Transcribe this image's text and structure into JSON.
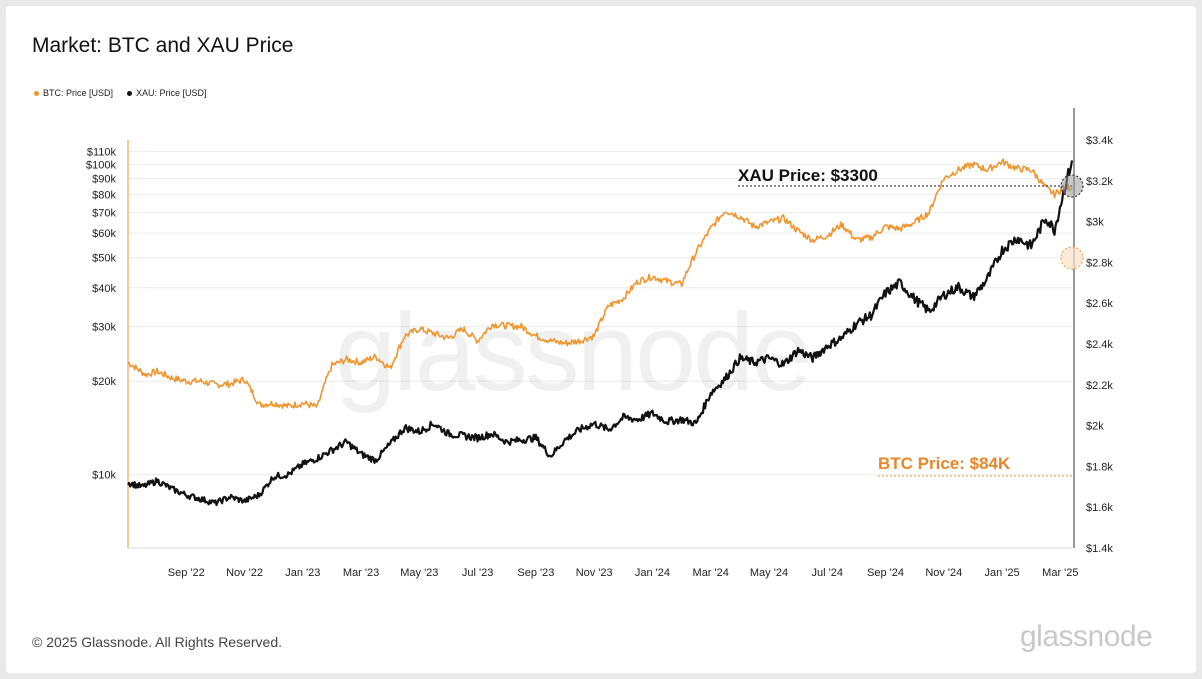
{
  "title": "Market: BTC and XAU Price",
  "footer": "© 2025 Glassnode. All Rights Reserved.",
  "brand": "glassnode",
  "watermark": "glassnode",
  "colors": {
    "btc": "#f0952e",
    "xau": "#111111",
    "grid": "#ececec",
    "btc_label": "#e8862a"
  },
  "legend": [
    {
      "label": "BTC: Price [USD]",
      "color": "#f0952e"
    },
    {
      "label": "XAU: Price [USD]",
      "color": "#111111"
    }
  ],
  "annotations": {
    "xau": "XAU Price: $3300",
    "btc": "BTC Price: $84K"
  },
  "chart_data": {
    "type": "line",
    "title": "Market: BTC and XAU Price",
    "x_ticks": [
      "Sep '22",
      "Nov '22",
      "Jan '23",
      "Mar '23",
      "May '23",
      "Jul '23",
      "Sep '23",
      "Nov '23",
      "Jan '24",
      "Mar '24",
      "May '24",
      "Jul '24",
      "Sep '24",
      "Nov '24",
      "Jan '25",
      "Mar '25"
    ],
    "x_range": [
      0,
      32.4
    ],
    "y_left": {
      "label": "BTC: Price [USD]",
      "ticks": [
        "$10k",
        "$20k",
        "$30k",
        "$40k",
        "$50k",
        "$60k",
        "$70k",
        "$80k",
        "$90k",
        "$100k",
        "$110k"
      ],
      "tick_values": [
        10000,
        20000,
        30000,
        40000,
        50000,
        60000,
        70000,
        80000,
        90000,
        100000,
        110000
      ],
      "range": [
        5800,
        119800
      ],
      "scale": "log"
    },
    "y_right": {
      "label": "XAU: Price [USD]",
      "ticks": [
        "$1.4k",
        "$1.6k",
        "$1.8k",
        "$2k",
        "$2.2k",
        "$2.4k",
        "$2.6k",
        "$2.8k",
        "$3k",
        "$3.2k",
        "$3.4k"
      ],
      "tick_values": [
        1400,
        1600,
        1800,
        2000,
        2200,
        2400,
        2600,
        2800,
        3000,
        3200,
        3400
      ],
      "range": [
        1400,
        3400
      ],
      "scale": "linear"
    },
    "series": [
      {
        "name": "BTC: Price [USD]",
        "axis": "left",
        "x": [
          0,
          0.3,
          0.6,
          1.0,
          1.5,
          2.0,
          2.5,
          3.0,
          3.5,
          4.0,
          4.5,
          5.0,
          5.5,
          6.0,
          6.5,
          7.0,
          7.5,
          8.0,
          8.5,
          9.0,
          9.5,
          10.0,
          10.5,
          11.0,
          11.5,
          12.0,
          12.5,
          13.0,
          13.5,
          14.0,
          14.5,
          15.0,
          15.5,
          16.0,
          16.5,
          17.0,
          17.5,
          18.0,
          18.5,
          19.0,
          19.5,
          20.0,
          20.5,
          21.0,
          21.5,
          22.0,
          22.5,
          23.0,
          23.5,
          24.0,
          24.5,
          25.0,
          25.5,
          26.0,
          26.5,
          27.0,
          27.5,
          28.0,
          28.5,
          29.0,
          29.5,
          30.0,
          30.5,
          31.0,
          31.5,
          31.8,
          32.1,
          32.4
        ],
        "values": [
          23000,
          22000,
          21000,
          21500,
          20500,
          20000,
          20000,
          19500,
          19600,
          20300,
          16800,
          17000,
          16600,
          17000,
          16500,
          22500,
          23500,
          23000,
          24000,
          22000,
          28000,
          29500,
          28500,
          27500,
          29500,
          27000,
          30500,
          30200,
          30000,
          28000,
          27000,
          26500,
          27000,
          28000,
          35000,
          37000,
          42000,
          43500,
          42000,
          41000,
          52000,
          62000,
          71000,
          68000,
          63000,
          65000,
          67000,
          61000,
          57000,
          59000,
          64000,
          57000,
          58000,
          63000,
          62000,
          65000,
          70000,
          90000,
          96000,
          100000,
          96000,
          102000,
          97000,
          96000,
          84000,
          80000,
          84000,
          84000
        ]
      },
      {
        "name": "XAU: Price [USD]",
        "axis": "right",
        "x": [
          0,
          0.5,
          1.0,
          1.5,
          2.0,
          2.5,
          3.0,
          3.5,
          4.0,
          4.5,
          5.0,
          5.5,
          6.0,
          6.5,
          7.0,
          7.5,
          8.0,
          8.5,
          9.0,
          9.5,
          10.0,
          10.5,
          11.0,
          11.5,
          12.0,
          12.5,
          13.0,
          13.5,
          14.0,
          14.5,
          15.0,
          15.5,
          16.0,
          16.5,
          17.0,
          17.5,
          18.0,
          18.5,
          19.0,
          19.5,
          20.0,
          20.5,
          21.0,
          21.5,
          22.0,
          22.5,
          23.0,
          23.5,
          24.0,
          24.5,
          25.0,
          25.5,
          26.0,
          26.5,
          27.0,
          27.5,
          28.0,
          28.5,
          29.0,
          29.5,
          30.0,
          30.5,
          31.0,
          31.5,
          31.8,
          32.1,
          32.4
        ],
        "values": [
          1720,
          1700,
          1730,
          1690,
          1660,
          1640,
          1620,
          1650,
          1630,
          1660,
          1750,
          1760,
          1810,
          1840,
          1880,
          1920,
          1860,
          1830,
          1910,
          1990,
          1970,
          2010,
          1960,
          1950,
          1940,
          1960,
          1920,
          1930,
          1940,
          1850,
          1930,
          1980,
          2010,
          1980,
          2040,
          2030,
          2060,
          2020,
          2030,
          2010,
          2160,
          2230,
          2330,
          2310,
          2330,
          2300,
          2370,
          2330,
          2390,
          2430,
          2500,
          2540,
          2650,
          2700,
          2620,
          2560,
          2640,
          2680,
          2630,
          2720,
          2860,
          2920,
          2880,
          3020,
          2960,
          3140,
          3300
        ]
      }
    ]
  }
}
